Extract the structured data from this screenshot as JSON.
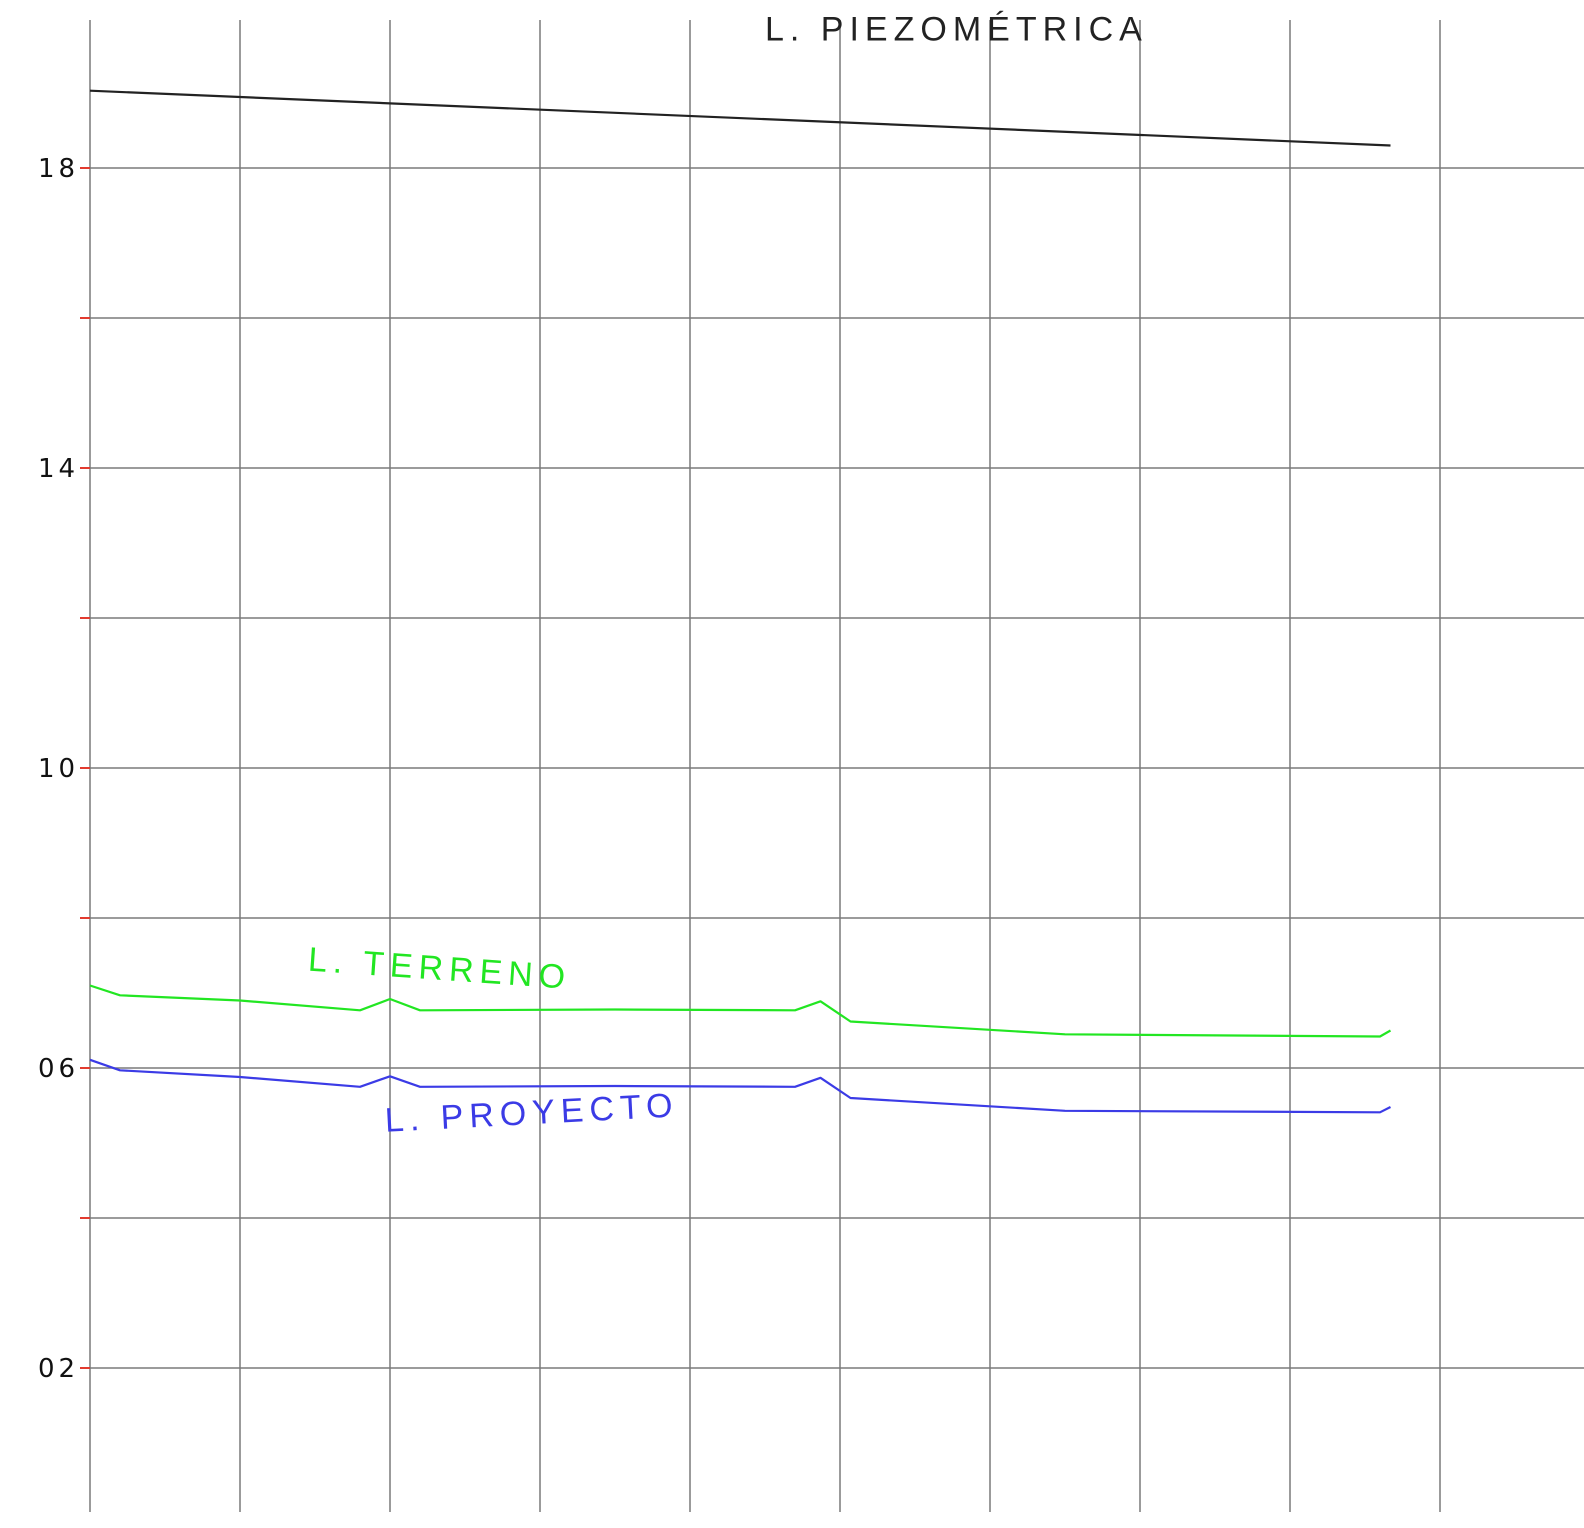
{
  "chart_data": {
    "type": "line",
    "title": "",
    "xlabel": "",
    "ylabel": "",
    "grid": true,
    "ylim": [
      0.5,
      20.5
    ],
    "xlim": [
      0,
      13
    ],
    "y_ticks": [
      {
        "value": 18,
        "label": "18"
      },
      {
        "value": 14,
        "label": "14"
      },
      {
        "value": 10,
        "label": "10"
      },
      {
        "value": 6,
        "label": "06"
      },
      {
        "value": 2,
        "label": "02"
      }
    ],
    "y_minor_ticks": [
      16,
      12,
      8,
      4
    ],
    "x_grid": [
      0,
      1,
      2,
      3,
      4,
      5,
      6,
      7,
      8,
      9,
      10
    ],
    "series": [
      {
        "name": "L. PIEZOMÉTRICA",
        "color": "#222222",
        "points": [
          [
            0,
            19.03
          ],
          [
            8.67,
            18.3
          ]
        ]
      },
      {
        "name": "L. TERRENO",
        "color": "#22e622",
        "points": [
          [
            0,
            7.1
          ],
          [
            0.2,
            6.97
          ],
          [
            1.0,
            6.9
          ],
          [
            1.8,
            6.77
          ],
          [
            2.0,
            6.92
          ],
          [
            2.2,
            6.77
          ],
          [
            3.5,
            6.78
          ],
          [
            4.7,
            6.77
          ],
          [
            4.87,
            6.89
          ],
          [
            5.07,
            6.62
          ],
          [
            6.5,
            6.45
          ],
          [
            8.6,
            6.42
          ],
          [
            8.67,
            6.5
          ]
        ]
      },
      {
        "name": "L. PROYECTO",
        "color": "#3b3be6",
        "points": [
          [
            0,
            6.11
          ],
          [
            0.2,
            5.97
          ],
          [
            1.0,
            5.88
          ],
          [
            1.8,
            5.75
          ],
          [
            2.0,
            5.89
          ],
          [
            2.2,
            5.75
          ],
          [
            3.5,
            5.76
          ],
          [
            4.7,
            5.75
          ],
          [
            4.87,
            5.87
          ],
          [
            5.07,
            5.6
          ],
          [
            6.5,
            5.43
          ],
          [
            8.6,
            5.41
          ],
          [
            8.67,
            5.48
          ]
        ]
      }
    ],
    "annotations": [
      {
        "text": "L. PIEZOMÉTRICA",
        "series": "L. PIEZOMÉTRICA",
        "x": 4.5,
        "y": 19.7,
        "rotate": 0
      },
      {
        "text": "L. TERRENO",
        "series": "L. TERRENO",
        "x": 1.45,
        "y": 7.3,
        "rotate": 4
      },
      {
        "text": "L. PROYECTO",
        "series": "L. PROYECTO",
        "x": 1.97,
        "y": 5.15,
        "rotate": -3
      }
    ]
  }
}
